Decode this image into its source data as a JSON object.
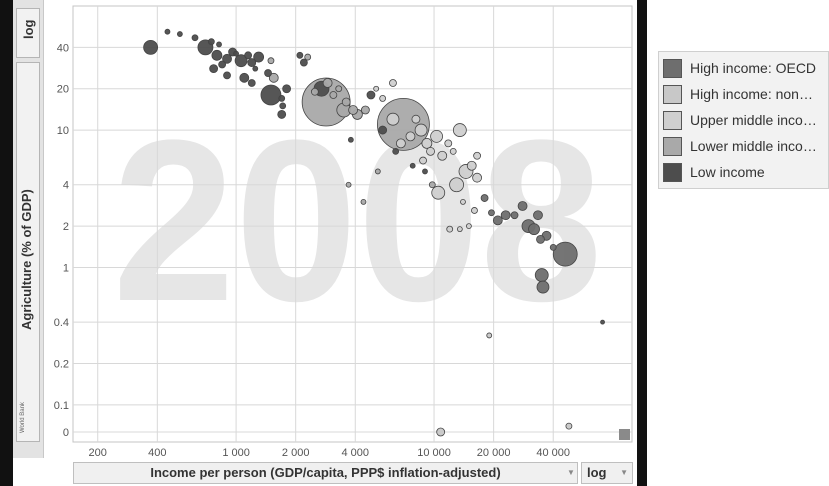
{
  "controls": {
    "y_scale": "log",
    "x_scale": "log",
    "x_selector_label": "Income per person (GDP/capita, PPP$ inflation-adjusted)",
    "y_selector_label": "Agriculture (% of GDP)",
    "credit": "World Bank"
  },
  "chart_data": {
    "type": "scatter",
    "year_watermark": "2008",
    "xlabel": "Income per person (GDP/capita, PPP$ inflation-adjusted)",
    "ylabel": "Agriculture (% of GDP)",
    "x_scale": "log",
    "y_scale": "log",
    "xlim": [
      150,
      100000
    ],
    "ylim": [
      0.075,
      80
    ],
    "x_ticks": [
      200,
      400,
      1000,
      2000,
      4000,
      10000,
      20000,
      40000
    ],
    "x_tick_labels": [
      "200",
      "400",
      "1 000",
      "2 000",
      "4 000",
      "10 000",
      "20 000",
      "40 000"
    ],
    "y_ticks": [
      40,
      20,
      10,
      4,
      2,
      1,
      0.4,
      0.2,
      0.1
    ],
    "y_tick_labels": [
      "40",
      "20",
      "10",
      "4",
      "2",
      "1",
      "0.4",
      "0.2",
      "0.1"
    ],
    "zero_tick_label": "0",
    "legend": [
      {
        "name": "High income: OECD",
        "label": "High income: OECD",
        "color": "#6e6e6e"
      },
      {
        "name": "High income: nonOECD",
        "label": "High income: non…",
        "color": "#c8c8c8"
      },
      {
        "name": "Upper middle income",
        "label": "Upper middle inco…",
        "color": "#cfcfcf"
      },
      {
        "name": "Lower middle income",
        "label": "Lower middle inco…",
        "color": "#a9a9a9"
      },
      {
        "name": "Low income",
        "label": "Low income",
        "color": "#4d4d4d"
      }
    ],
    "points": [
      {
        "x": 370,
        "y": 40,
        "size": 14,
        "group": 4
      },
      {
        "x": 450,
        "y": 52,
        "size": 5,
        "group": 4
      },
      {
        "x": 520,
        "y": 50,
        "size": 5,
        "group": 4
      },
      {
        "x": 620,
        "y": 47,
        "size": 6,
        "group": 4
      },
      {
        "x": 700,
        "y": 40,
        "size": 15,
        "group": 4
      },
      {
        "x": 750,
        "y": 44,
        "size": 6,
        "group": 4
      },
      {
        "x": 820,
        "y": 42,
        "size": 5,
        "group": 4
      },
      {
        "x": 800,
        "y": 35,
        "size": 10,
        "group": 4
      },
      {
        "x": 770,
        "y": 28,
        "size": 8,
        "group": 4
      },
      {
        "x": 850,
        "y": 30,
        "size": 7,
        "group": 4
      },
      {
        "x": 900,
        "y": 33,
        "size": 9,
        "group": 4
      },
      {
        "x": 960,
        "y": 37,
        "size": 8,
        "group": 4
      },
      {
        "x": 1000,
        "y": 36,
        "size": 5,
        "group": 4
      },
      {
        "x": 900,
        "y": 25,
        "size": 7,
        "group": 4
      },
      {
        "x": 1060,
        "y": 32,
        "size": 12,
        "group": 4
      },
      {
        "x": 1150,
        "y": 35,
        "size": 7,
        "group": 4
      },
      {
        "x": 1200,
        "y": 31,
        "size": 8,
        "group": 4
      },
      {
        "x": 1300,
        "y": 34,
        "size": 10,
        "group": 4
      },
      {
        "x": 1250,
        "y": 28,
        "size": 5,
        "group": 4
      },
      {
        "x": 1500,
        "y": 32,
        "size": 6,
        "group": 3
      },
      {
        "x": 1450,
        "y": 26,
        "size": 7,
        "group": 4
      },
      {
        "x": 1100,
        "y": 24,
        "size": 9,
        "group": 4
      },
      {
        "x": 1200,
        "y": 22,
        "size": 7,
        "group": 4
      },
      {
        "x": 1500,
        "y": 18,
        "size": 20,
        "group": 4
      },
      {
        "x": 1700,
        "y": 17,
        "size": 6,
        "group": 4
      },
      {
        "x": 1700,
        "y": 13,
        "size": 8,
        "group": 4
      },
      {
        "x": 1720,
        "y": 15,
        "size": 6,
        "group": 4
      },
      {
        "x": 1550,
        "y": 24,
        "size": 9,
        "group": 3
      },
      {
        "x": 1800,
        "y": 20,
        "size": 8,
        "group": 4
      },
      {
        "x": 2100,
        "y": 35,
        "size": 6,
        "group": 4
      },
      {
        "x": 2200,
        "y": 31,
        "size": 7,
        "group": 4
      },
      {
        "x": 2300,
        "y": 34,
        "size": 6,
        "group": 3
      },
      {
        "x": 2700,
        "y": 20,
        "size": 15,
        "group": 4
      },
      {
        "x": 2500,
        "y": 19,
        "size": 7,
        "group": 3
      },
      {
        "x": 2850,
        "y": 16,
        "size": 48,
        "group": 3
      },
      {
        "x": 2900,
        "y": 22,
        "size": 9,
        "group": 3
      },
      {
        "x": 3100,
        "y": 18,
        "size": 7,
        "group": 3
      },
      {
        "x": 3300,
        "y": 20,
        "size": 6,
        "group": 3
      },
      {
        "x": 3600,
        "y": 16,
        "size": 8,
        "group": 3
      },
      {
        "x": 3500,
        "y": 14,
        "size": 14,
        "group": 3
      },
      {
        "x": 3900,
        "y": 14,
        "size": 9,
        "group": 3
      },
      {
        "x": 4100,
        "y": 13,
        "size": 10,
        "group": 3
      },
      {
        "x": 4500,
        "y": 14,
        "size": 8,
        "group": 3
      },
      {
        "x": 4800,
        "y": 18,
        "size": 8,
        "group": 4
      },
      {
        "x": 3800,
        "y": 8.5,
        "size": 5,
        "group": 4
      },
      {
        "x": 5100,
        "y": 20,
        "size": 5,
        "group": 2
      },
      {
        "x": 5500,
        "y": 17,
        "size": 6,
        "group": 2
      },
      {
        "x": 6200,
        "y": 22,
        "size": 7,
        "group": 2
      },
      {
        "x": 7000,
        "y": 11,
        "size": 52,
        "group": 3
      },
      {
        "x": 6200,
        "y": 12,
        "size": 12,
        "group": 2
      },
      {
        "x": 6800,
        "y": 8,
        "size": 9,
        "group": 2
      },
      {
        "x": 7600,
        "y": 9,
        "size": 9,
        "group": 2
      },
      {
        "x": 8100,
        "y": 12,
        "size": 8,
        "group": 2
      },
      {
        "x": 8600,
        "y": 10,
        "size": 12,
        "group": 2
      },
      {
        "x": 9200,
        "y": 8,
        "size": 10,
        "group": 2
      },
      {
        "x": 8800,
        "y": 6,
        "size": 7,
        "group": 2
      },
      {
        "x": 9600,
        "y": 7,
        "size": 8,
        "group": 2
      },
      {
        "x": 10300,
        "y": 9,
        "size": 12,
        "group": 2
      },
      {
        "x": 11000,
        "y": 6.5,
        "size": 9,
        "group": 2
      },
      {
        "x": 11800,
        "y": 8,
        "size": 7,
        "group": 2
      },
      {
        "x": 12500,
        "y": 7,
        "size": 6,
        "group": 2
      },
      {
        "x": 13500,
        "y": 10,
        "size": 13,
        "group": 2
      },
      {
        "x": 14500,
        "y": 5,
        "size": 14,
        "group": 2
      },
      {
        "x": 13000,
        "y": 4,
        "size": 14,
        "group": 2
      },
      {
        "x": 10500,
        "y": 3.5,
        "size": 13,
        "group": 2
      },
      {
        "x": 15500,
        "y": 5.5,
        "size": 9,
        "group": 2
      },
      {
        "x": 16500,
        "y": 4.5,
        "size": 9,
        "group": 2
      },
      {
        "x": 12000,
        "y": 1.9,
        "size": 6,
        "group": 2
      },
      {
        "x": 13500,
        "y": 1.9,
        "size": 5,
        "group": 2
      },
      {
        "x": 15000,
        "y": 2.0,
        "size": 5,
        "group": 2
      },
      {
        "x": 16000,
        "y": 2.6,
        "size": 6,
        "group": 2
      },
      {
        "x": 14000,
        "y": 3,
        "size": 5,
        "group": 2
      },
      {
        "x": 5500,
        "y": 10,
        "size": 8,
        "group": 4
      },
      {
        "x": 6400,
        "y": 7,
        "size": 6,
        "group": 4
      },
      {
        "x": 7800,
        "y": 5.5,
        "size": 5,
        "group": 4
      },
      {
        "x": 9000,
        "y": 5,
        "size": 5,
        "group": 4
      },
      {
        "x": 18000,
        "y": 3.2,
        "size": 7,
        "group": 0
      },
      {
        "x": 19500,
        "y": 2.5,
        "size": 6,
        "group": 0
      },
      {
        "x": 21000,
        "y": 2.2,
        "size": 9,
        "group": 0
      },
      {
        "x": 23000,
        "y": 2.4,
        "size": 9,
        "group": 0
      },
      {
        "x": 25500,
        "y": 2.4,
        "size": 7,
        "group": 0
      },
      {
        "x": 28000,
        "y": 2.8,
        "size": 9,
        "group": 0
      },
      {
        "x": 30000,
        "y": 2.0,
        "size": 13,
        "group": 0
      },
      {
        "x": 32000,
        "y": 1.9,
        "size": 11,
        "group": 0
      },
      {
        "x": 33500,
        "y": 2.4,
        "size": 9,
        "group": 0
      },
      {
        "x": 34500,
        "y": 1.6,
        "size": 8,
        "group": 0
      },
      {
        "x": 37000,
        "y": 1.7,
        "size": 9,
        "group": 0
      },
      {
        "x": 40000,
        "y": 1.4,
        "size": 6,
        "group": 0
      },
      {
        "x": 35000,
        "y": 0.88,
        "size": 13,
        "group": 0
      },
      {
        "x": 35500,
        "y": 0.72,
        "size": 12,
        "group": 0
      },
      {
        "x": 46000,
        "y": 1.25,
        "size": 24,
        "group": 0
      },
      {
        "x": 48000,
        "y": 0.07,
        "size": 6,
        "group": 1
      },
      {
        "x": 10800,
        "y": 0.0,
        "size": 8,
        "group": 1
      },
      {
        "x": 19000,
        "y": 0.32,
        "size": 5,
        "group": 1
      },
      {
        "x": 71000,
        "y": 0.4,
        "size": 4,
        "group": 4
      },
      {
        "x": 16500,
        "y": 6.5,
        "size": 7,
        "group": 2
      },
      {
        "x": 9800,
        "y": 4,
        "size": 6,
        "group": 3
      },
      {
        "x": 5200,
        "y": 5,
        "size": 5,
        "group": 3
      },
      {
        "x": 3700,
        "y": 4,
        "size": 5,
        "group": 3
      },
      {
        "x": 4400,
        "y": 3,
        "size": 5,
        "group": 3
      }
    ]
  }
}
